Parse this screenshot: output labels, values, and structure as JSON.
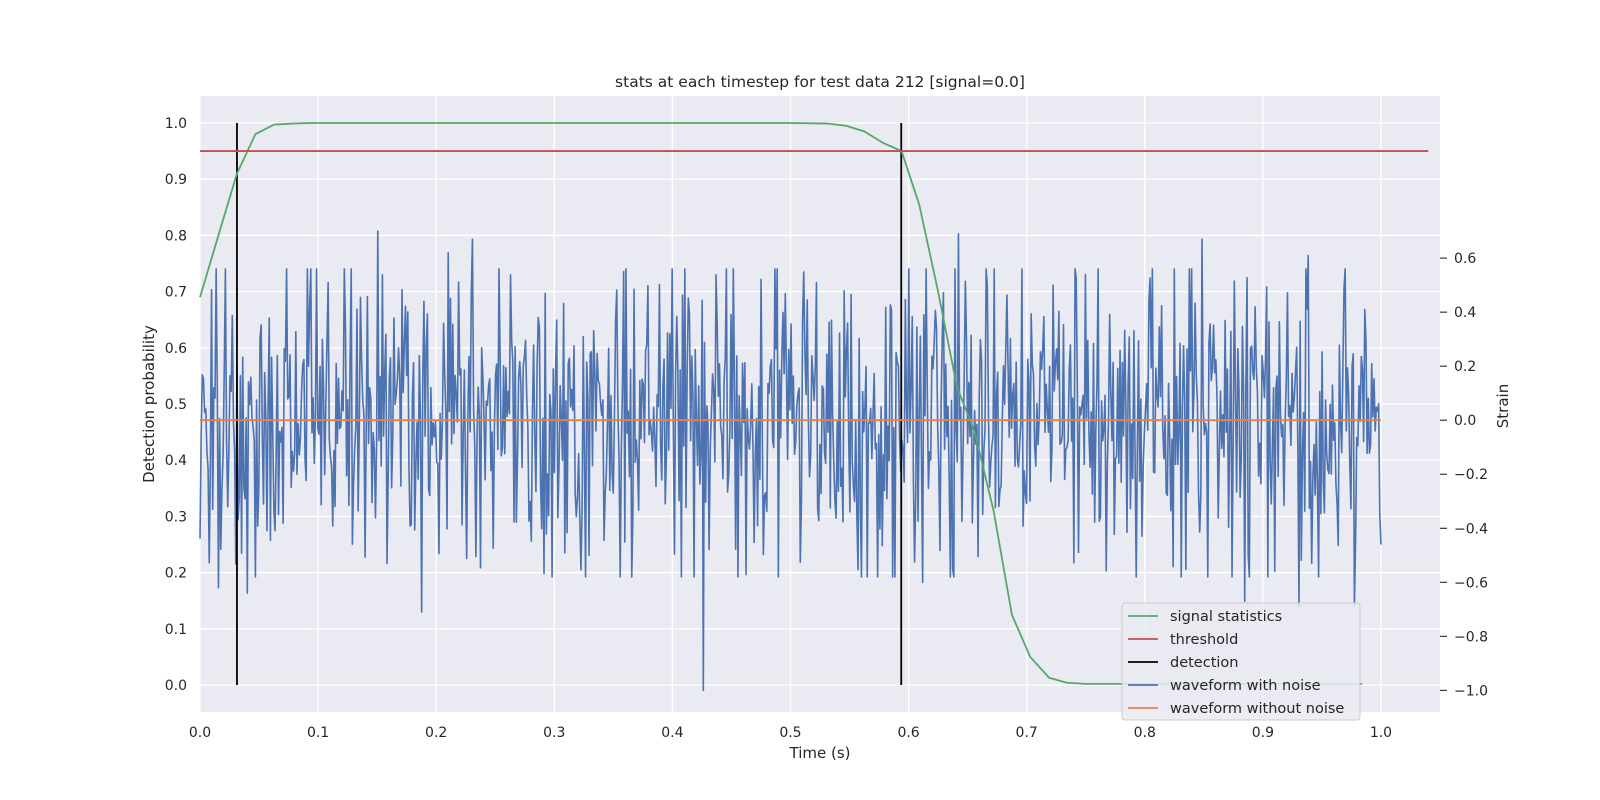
{
  "chart_data": {
    "type": "line",
    "title": "stats at each timestep for test data 212 [signal=0.0]",
    "xlabel": "Time (s)",
    "ylabel": "Detection probability",
    "y2label": "Strain",
    "xlim": [
      0.0,
      1.05
    ],
    "ylim": [
      -0.048,
      1.048
    ],
    "y2lim": [
      -1.08,
      1.2
    ],
    "xticks": [
      "0.0",
      "0.1",
      "0.2",
      "0.3",
      "0.4",
      "0.5",
      "0.6",
      "0.7",
      "0.8",
      "0.9",
      "1.0"
    ],
    "yticks": [
      "0.0",
      "0.1",
      "0.2",
      "0.3",
      "0.4",
      "0.5",
      "0.6",
      "0.7",
      "0.8",
      "0.9",
      "1.0"
    ],
    "y2ticks": [
      "−1.0",
      "−0.8",
      "−0.6",
      "−0.4",
      "−0.2",
      "0.0",
      "0.2",
      "0.4",
      "0.6"
    ],
    "grid": true,
    "legend_position": "lower right",
    "legend": [
      {
        "label": "signal statistics",
        "color": "#55a868"
      },
      {
        "label": "threshold",
        "color": "#c44e52"
      },
      {
        "label": "detection",
        "color": "#000000"
      },
      {
        "label": "waveform with noise",
        "color": "#4c72b0"
      },
      {
        "label": "waveform without noise",
        "color": "#dd8452"
      }
    ],
    "series": [
      {
        "name": "signal statistics",
        "axis": "left",
        "color": "#55a868",
        "x": [
          0.0,
          0.0156,
          0.0313,
          0.0469,
          0.0625,
          0.0781,
          0.0938,
          0.25,
          0.5,
          0.531,
          0.547,
          0.5625,
          0.578,
          0.594,
          0.609,
          0.625,
          0.641,
          0.656,
          0.672,
          0.6875,
          0.703,
          0.719,
          0.734,
          0.75,
          0.8,
          0.9,
          0.984
        ],
        "y": [
          0.69,
          0.8,
          0.91,
          0.98,
          0.997,
          0.999,
          1.0,
          1.0,
          1.0,
          0.999,
          0.995,
          0.985,
          0.965,
          0.95,
          0.855,
          0.7,
          0.53,
          0.45,
          0.31,
          0.125,
          0.05,
          0.013,
          0.004,
          0.002,
          0.002,
          0.002,
          0.002
        ]
      },
      {
        "name": "threshold",
        "axis": "left",
        "color": "#c44e52",
        "x": [
          0.0,
          1.04
        ],
        "y": [
          0.95,
          0.95
        ]
      },
      {
        "name": "waveform without noise",
        "axis": "right",
        "color": "#dd8452",
        "x": [
          0.0,
          1.0
        ],
        "y": [
          0.0,
          0.0
        ]
      },
      {
        "name": "waveform with noise",
        "axis": "right",
        "color": "#4c72b0",
        "x_range": [
          0.0,
          1.0
        ],
        "sample_count": 1024,
        "seed": 212,
        "std": 0.29,
        "peaks": [
          {
            "x": 0.151,
            "y": 0.7
          },
          {
            "x": 0.21,
            "y": 0.62
          },
          {
            "x": 0.231,
            "y": 0.67
          },
          {
            "x": 0.642,
            "y": 0.69
          },
          {
            "x": 0.848,
            "y": 0.67
          },
          {
            "x": 0.938,
            "y": 0.61
          },
          {
            "x": 0.426,
            "y": -1.0
          },
          {
            "x": 0.188,
            "y": -0.71
          },
          {
            "x": 0.016,
            "y": -0.62
          },
          {
            "x": 0.04,
            "y": -0.64
          },
          {
            "x": 0.931,
            "y": -0.69
          },
          {
            "x": 0.978,
            "y": -0.69
          },
          {
            "x": 0.885,
            "y": -0.67
          },
          {
            "x": 0.612,
            "y": -0.6
          },
          {
            "x": 0.158,
            "y": -0.53
          }
        ]
      }
    ],
    "detections": [
      {
        "x": 0.0313,
        "y_range": [
          0.0,
          1.0
        ]
      },
      {
        "x": 0.5938,
        "y_range": [
          0.0,
          1.0
        ]
      }
    ]
  },
  "colors": {
    "plot_background": "#eaeaf2",
    "grid": "#ffffff",
    "text": "#262626"
  }
}
